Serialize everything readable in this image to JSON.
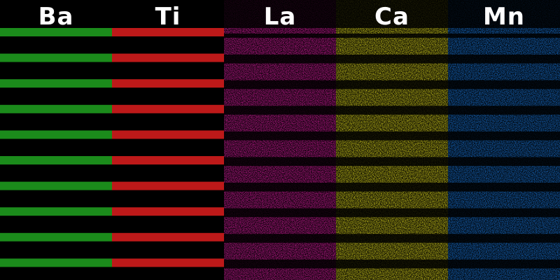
{
  "panels": [
    {
      "label": "Ba",
      "color": "#1e9a1e",
      "kind": "thin"
    },
    {
      "label": "Ti",
      "color": "#d21c1c",
      "kind": "thin"
    },
    {
      "label": "La",
      "color": "#e01fa6",
      "kind": "thick"
    },
    {
      "label": "Ca",
      "color": "#e6e020",
      "kind": "thick"
    },
    {
      "label": "Mn",
      "color": "#1a78de",
      "kind": "thick"
    }
  ]
}
